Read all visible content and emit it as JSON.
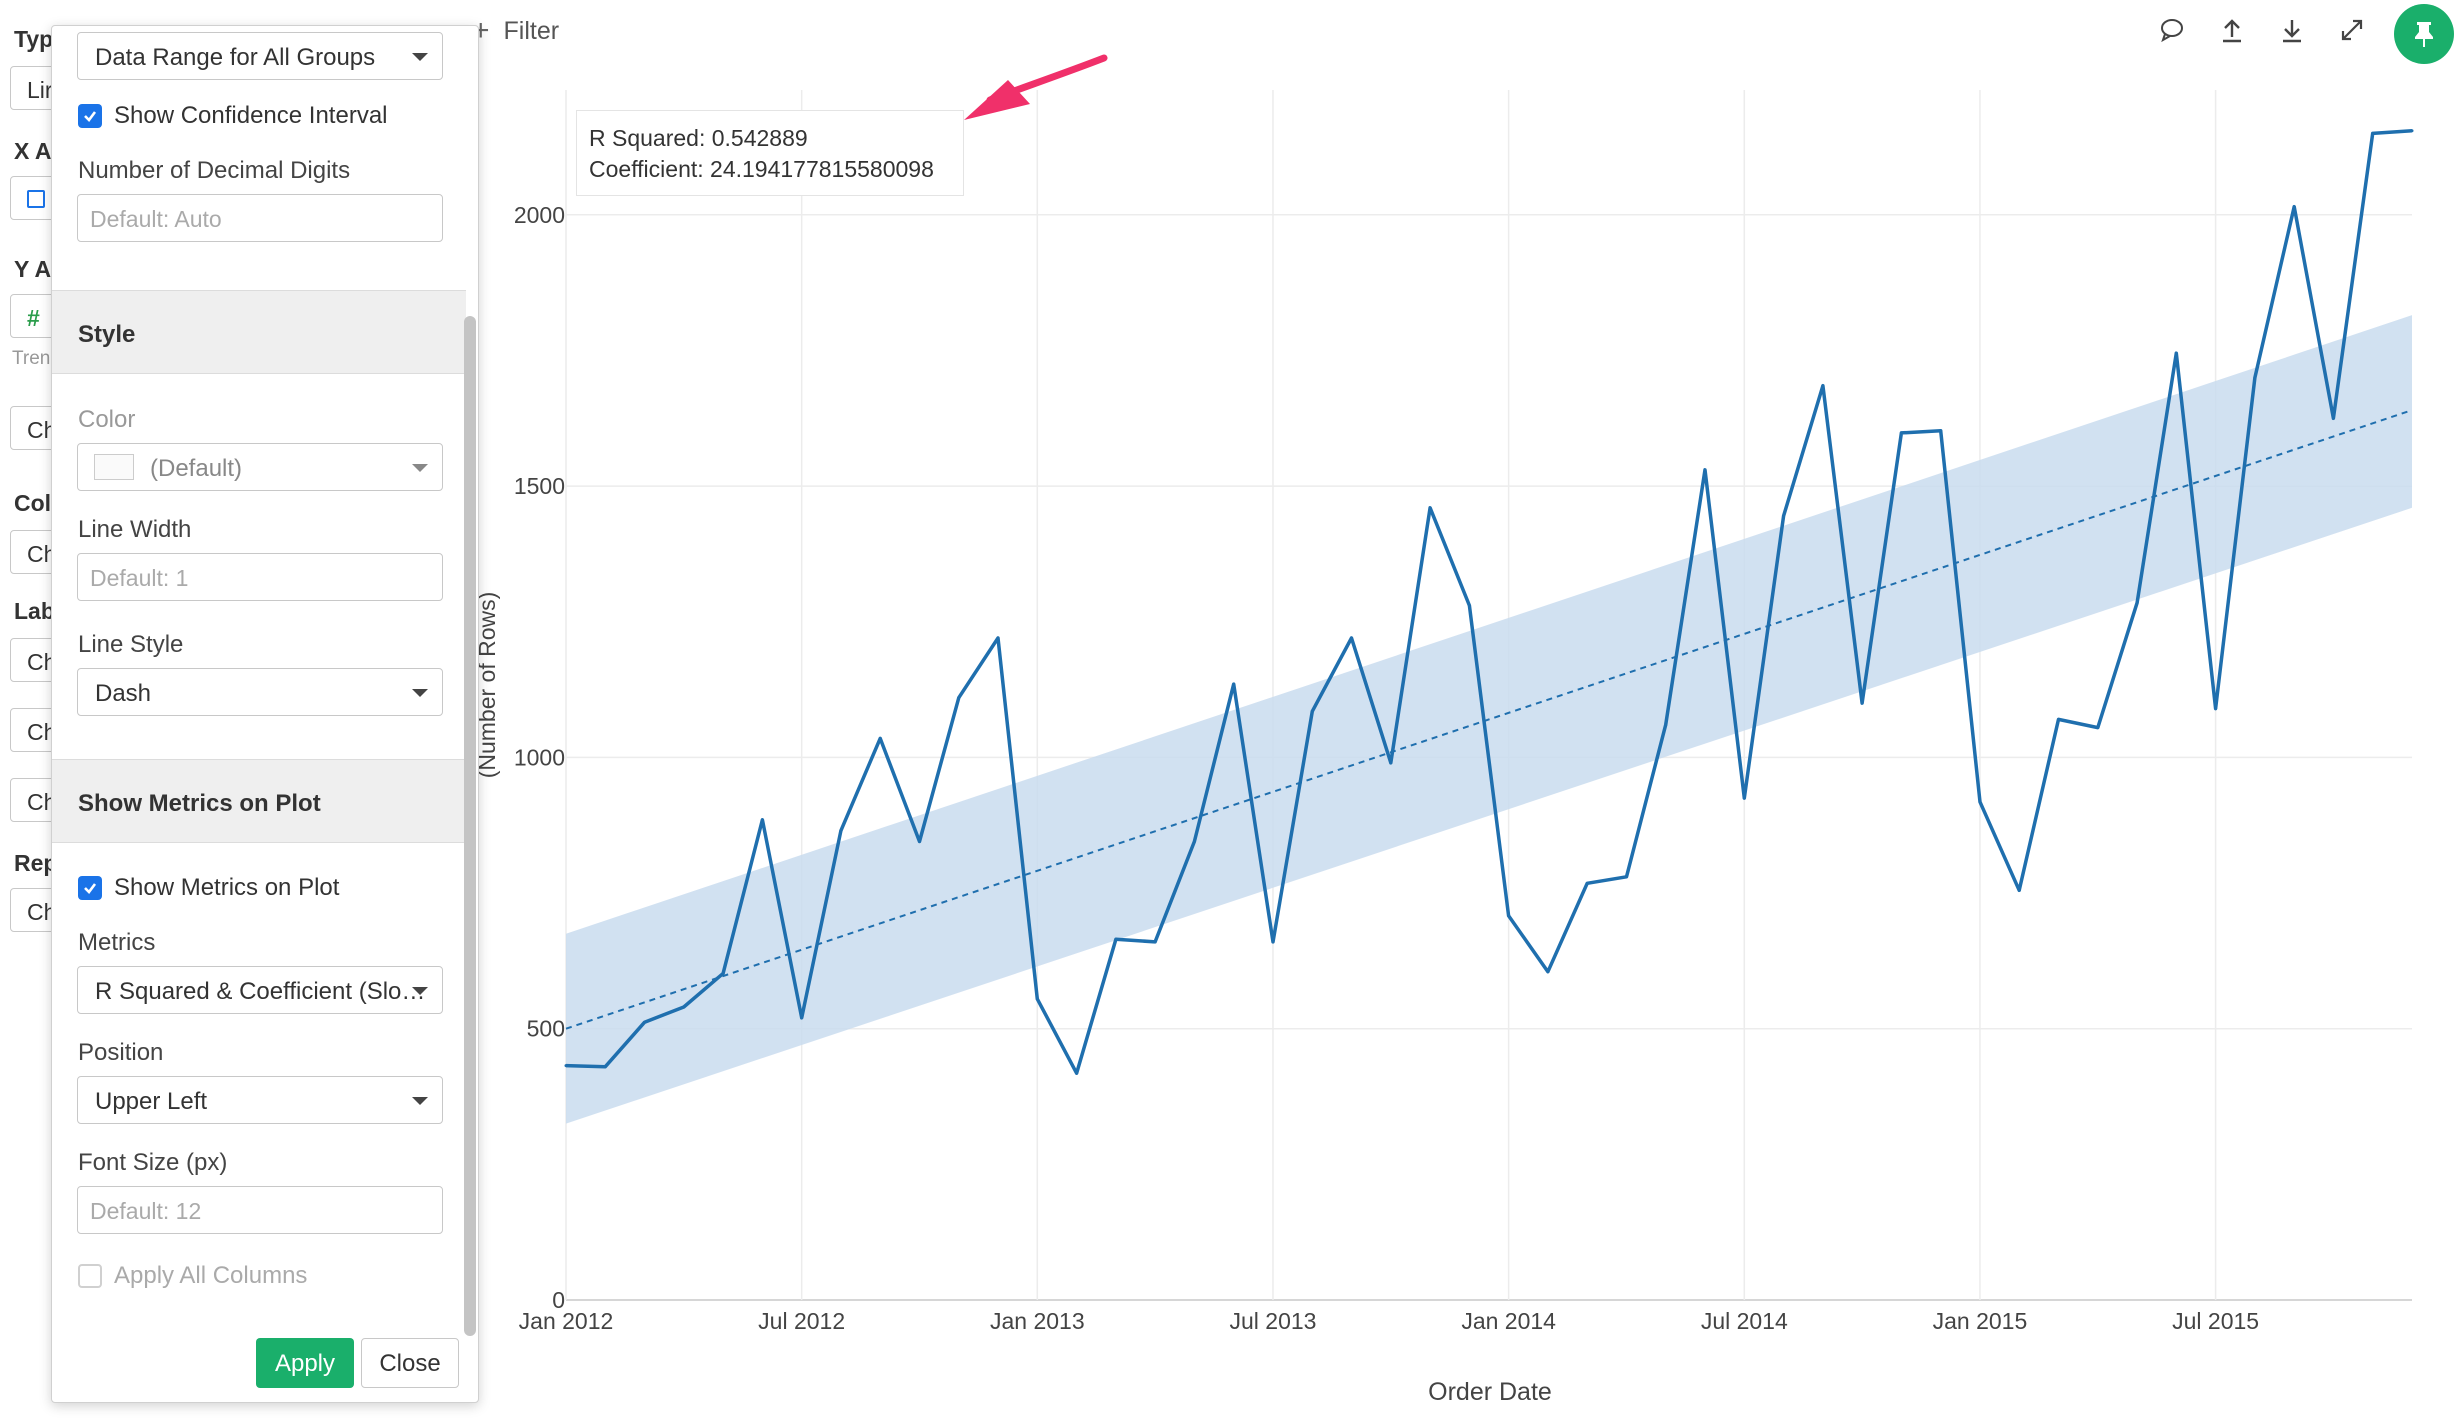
{
  "background_config": {
    "labels": [
      "Typ",
      "X A",
      "Y A",
      "Col",
      "Lab",
      "Rep"
    ],
    "boxes": [
      "Lir",
      "Ch",
      "Ch",
      "Ch",
      "Ch",
      "Ch",
      "Ch"
    ],
    "y_axis_symbol": "#",
    "y_axis_sub": "Tren"
  },
  "toolbar": {
    "filter_label": "Filter",
    "icons": [
      "comment-icon",
      "upload-icon",
      "download-icon",
      "expand-icon",
      "pin-icon"
    ]
  },
  "panel": {
    "data_range_select": "Data Range for All Groups",
    "show_confidence_interval": {
      "label": "Show Confidence Interval",
      "checked": true
    },
    "decimal_digits": {
      "label": "Number of Decimal Digits",
      "placeholder": "Default: Auto"
    },
    "style_section": "Style",
    "color": {
      "label": "Color",
      "value": "(Default)"
    },
    "line_width": {
      "label": "Line Width",
      "placeholder": "Default: 1"
    },
    "line_style": {
      "label": "Line Style",
      "value": "Dash"
    },
    "metrics_section": "Show Metrics on Plot",
    "show_metrics": {
      "label": "Show Metrics on Plot",
      "checked": true
    },
    "metrics": {
      "label": "Metrics",
      "value": "R Squared & Coefficient (Slo…"
    },
    "position": {
      "label": "Position",
      "value": "Upper Left"
    },
    "font_size": {
      "label": "Font Size (px)",
      "placeholder": "Default: 12"
    },
    "apply_all_columns": {
      "label": "Apply All Columns",
      "checked": false
    },
    "apply_button": "Apply",
    "close_button": "Close"
  },
  "metrics_overlay": {
    "r_squared": "R Squared: 0.542889",
    "coefficient": "Coefficient: 24.194177815580098"
  },
  "chart_data": {
    "type": "line",
    "xlabel": "Order Date",
    "ylabel": "(Number of Rows)",
    "x_tick_labels": [
      "Jan 2012",
      "Jul 2012",
      "Jan 2013",
      "Jul 2013",
      "Jan 2014",
      "Jul 2014",
      "Jan 2015",
      "Jul 2015"
    ],
    "y_ticks": [
      0,
      500,
      1000,
      1500,
      2000
    ],
    "ylim": [
      0,
      2230
    ],
    "grid": true,
    "x": [
      "2012-01",
      "2012-02",
      "2012-03",
      "2012-04",
      "2012-05",
      "2012-06",
      "2012-07",
      "2012-08",
      "2012-09",
      "2012-10",
      "2012-11",
      "2012-12",
      "2013-01",
      "2013-02",
      "2013-03",
      "2013-04",
      "2013-05",
      "2013-06",
      "2013-07",
      "2013-08",
      "2013-09",
      "2013-10",
      "2013-11",
      "2013-12",
      "2014-01",
      "2014-02",
      "2014-03",
      "2014-04",
      "2014-05",
      "2014-06",
      "2014-07",
      "2014-08",
      "2014-09",
      "2014-10",
      "2014-11",
      "2014-12",
      "2015-01",
      "2015-02",
      "2015-03",
      "2015-04",
      "2015-05",
      "2015-06",
      "2015-07",
      "2015-08",
      "2015-09",
      "2015-10",
      "2015-11",
      "2015-12"
    ],
    "series": [
      {
        "values": [
          432,
          430,
          512,
          540,
          602,
          885,
          520,
          865,
          1035,
          845,
          1110,
          1220,
          555,
          418,
          665,
          660,
          845,
          1135,
          660,
          1085,
          1220,
          990,
          1460,
          1280,
          708,
          605,
          768,
          780,
          1060,
          1530,
          925,
          1445,
          1685,
          1100,
          1598,
          1602,
          918,
          755,
          1070,
          1055,
          1285,
          1745,
          1090,
          1700,
          2015,
          1625,
          2150,
          2155
        ],
        "color": "#1f6fae"
      }
    ],
    "trend": {
      "start": 500,
      "end": 1640,
      "ci_start": [
        325,
        675
      ],
      "ci_end": [
        1460,
        1815
      ],
      "line_color": "#1f6fae",
      "band_color": "#c9dcef"
    }
  },
  "colors": {
    "accent_green": "#1aaf6b",
    "checkbox_blue": "#1a73e8",
    "arrow_pink": "#f0306a"
  }
}
